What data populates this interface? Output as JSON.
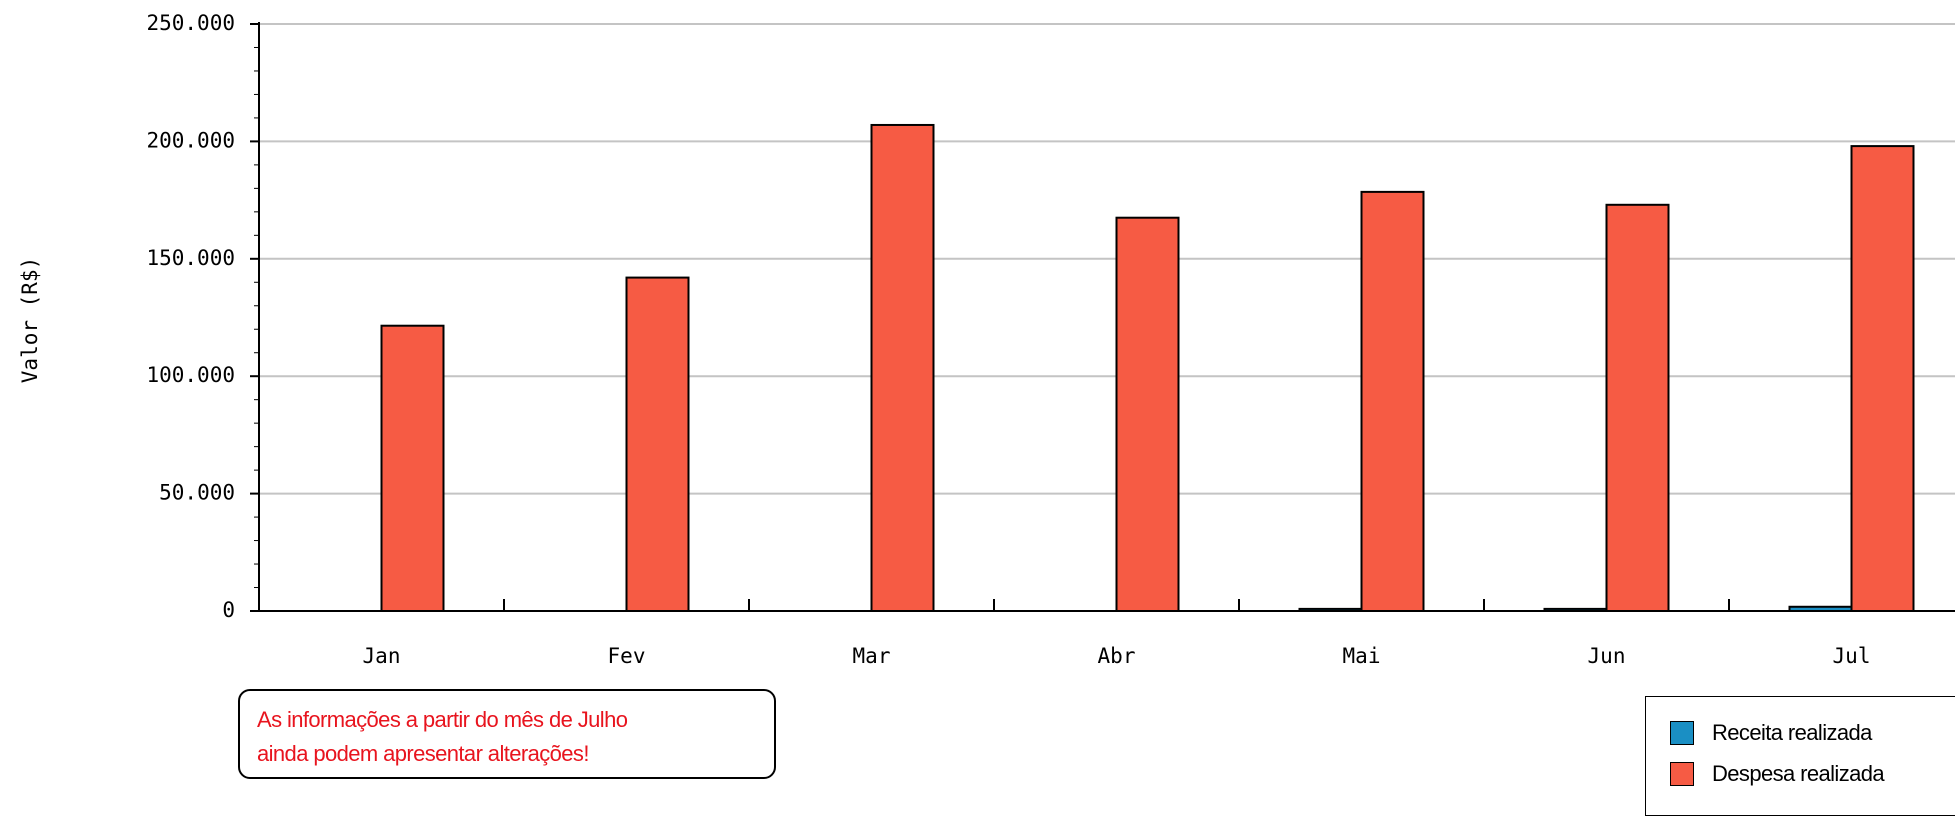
{
  "chart_data": {
    "type": "bar",
    "categories": [
      "Jan",
      "Fev",
      "Mar",
      "Abr",
      "Mai",
      "Jun",
      "Jul"
    ],
    "series": [
      {
        "name": "Receita realizada",
        "color": "#1a8fc4",
        "values": [
          0,
          0,
          0,
          0,
          900,
          900,
          1800
        ]
      },
      {
        "name": "Despesa realizada",
        "color": "#f65b44",
        "values": [
          121500,
          142000,
          207000,
          167500,
          178500,
          173000,
          198000
        ]
      }
    ],
    "ylabel": "Valor (R$)",
    "ylim": [
      0,
      250000
    ],
    "yticks": [
      0,
      50000,
      100000,
      150000,
      200000,
      250000
    ],
    "ytick_labels": [
      "0",
      "50.000",
      "100.000",
      "150.000",
      "200.000",
      "250.000"
    ],
    "grid": true
  },
  "note": {
    "line1": "As informações a partir do mês de Julho",
    "line2": "ainda podem apresentar alterações!"
  },
  "legend": {
    "items": [
      {
        "label": "Receita realizada",
        "color": "#1a8fc4"
      },
      {
        "label": "Despesa realizada",
        "color": "#f65b44"
      }
    ]
  }
}
